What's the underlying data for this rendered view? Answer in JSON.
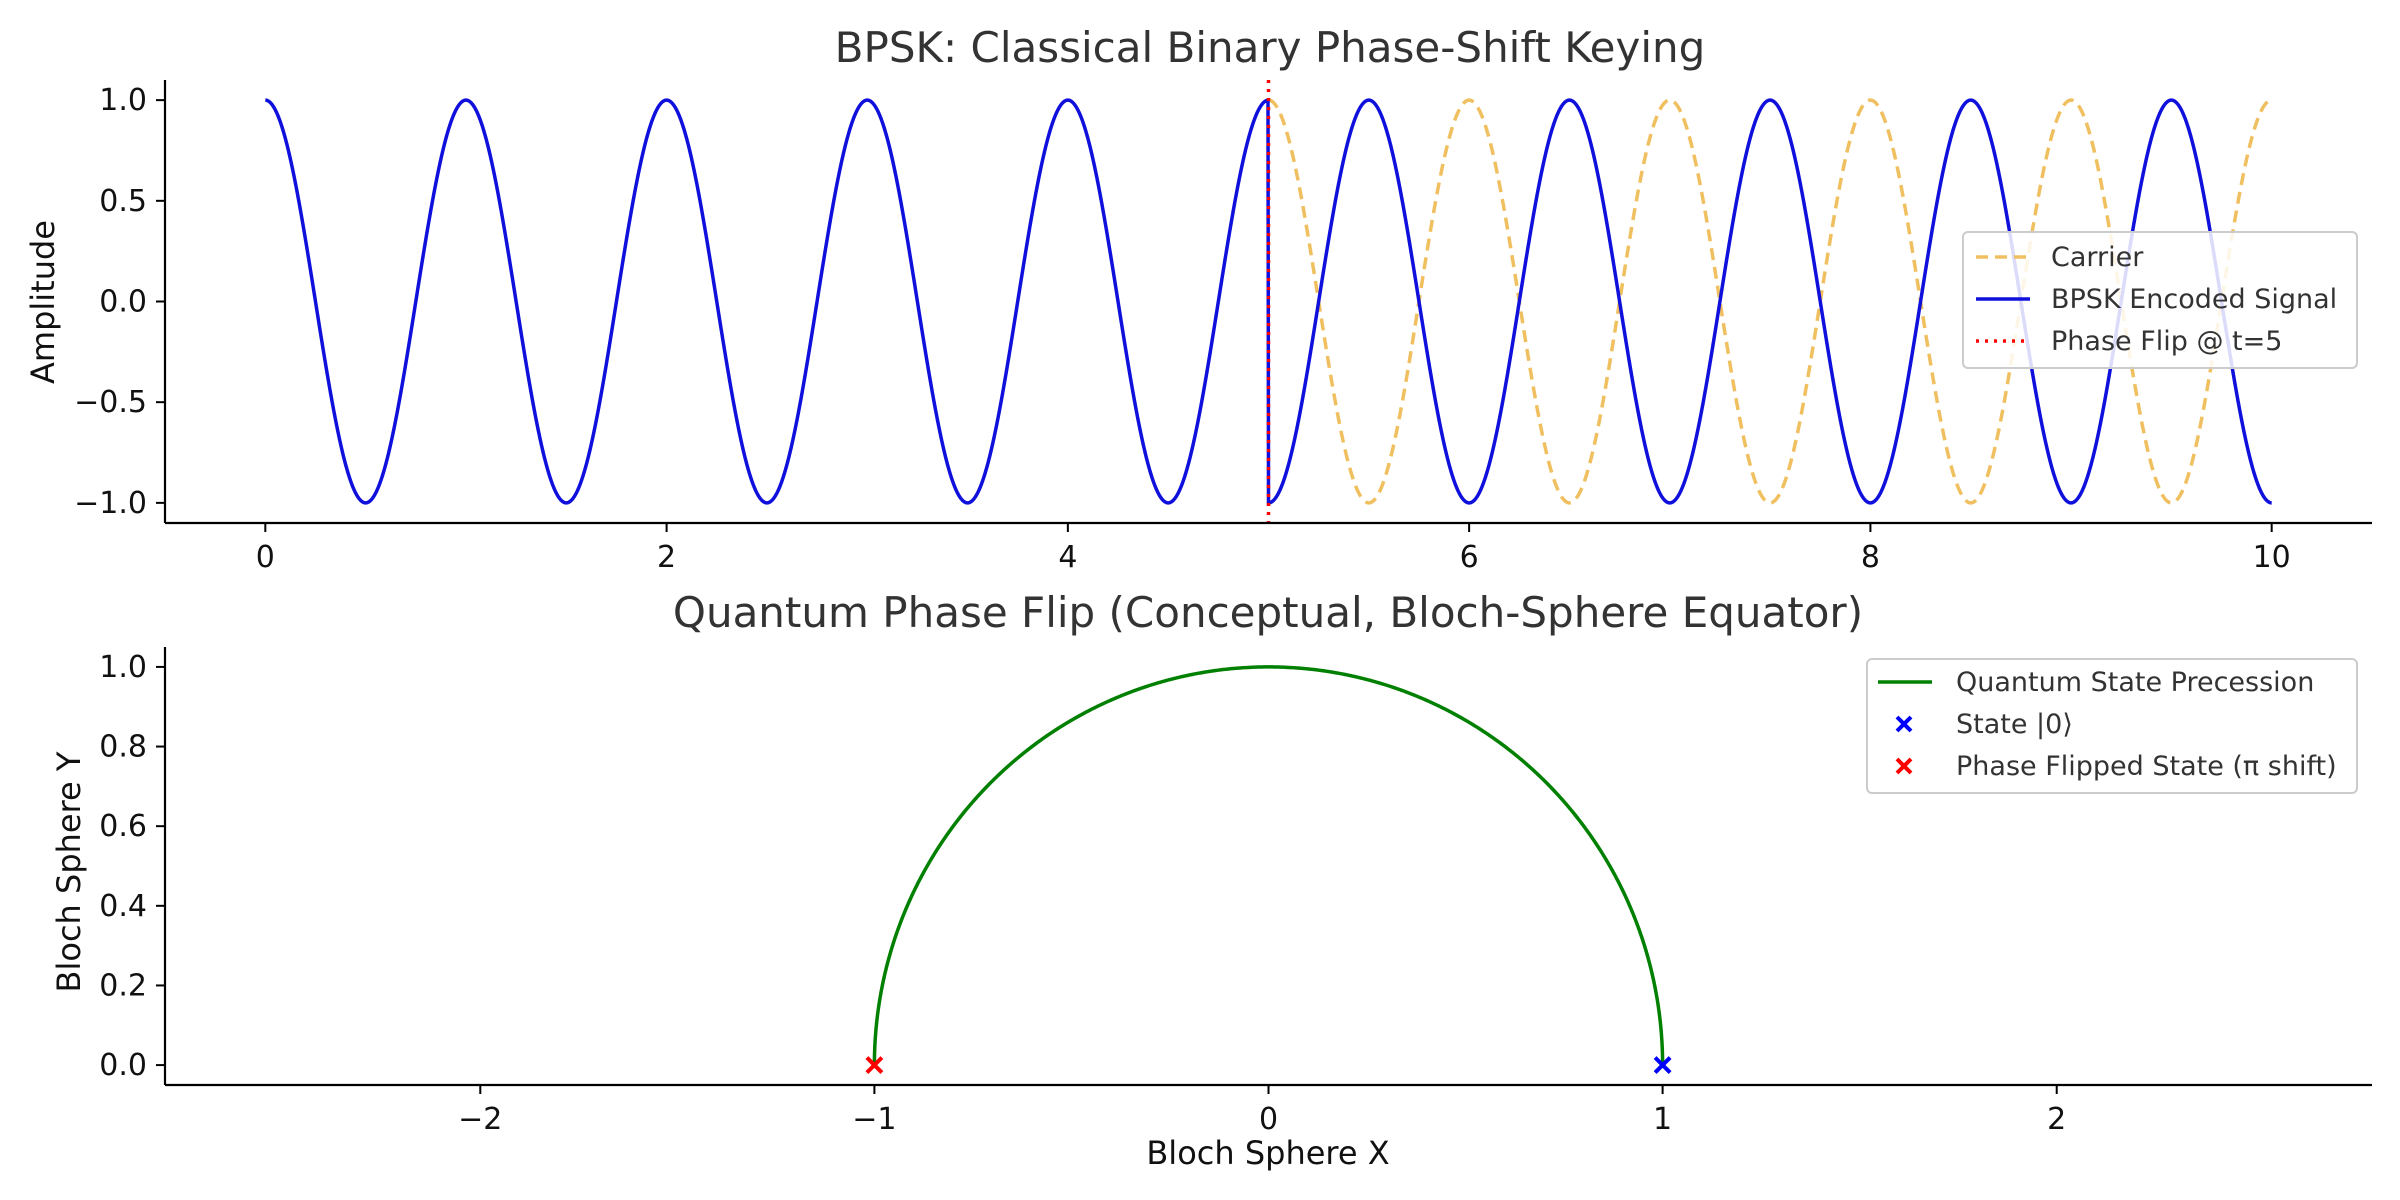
{
  "chart_data": [
    {
      "type": "line",
      "title": "BPSK: Classical Binary Phase-Shift Keying",
      "xlabel": "",
      "ylabel": "Amplitude",
      "xlim": [
        -0.5,
        10.5
      ],
      "ylim": [
        -1.1,
        1.1
      ],
      "xticks": [
        0,
        2,
        4,
        6,
        8,
        10
      ],
      "yticks": [
        1.0,
        0.5,
        0.0,
        -0.5,
        -1.0
      ],
      "xtick_labels": [
        "0",
        "2",
        "4",
        "6",
        "8",
        "10"
      ],
      "ytick_labels": [
        "1.0",
        "0.5",
        "0.0",
        "−0.5",
        "−1.0"
      ],
      "grid": false,
      "legend_position": "center-right",
      "series": [
        {
          "name": "Carrier",
          "style": "dashed",
          "color": "#f0c060",
          "function": "cos(2π·t)",
          "x_range": [
            0,
            10
          ],
          "drawn_from_x": 5
        },
        {
          "name": "BPSK Encoded Signal",
          "style": "solid",
          "color": "#1010dd",
          "function": "cos(2π·t) for t<5; −cos(2π·t) for t≥5",
          "x_range": [
            0,
            10
          ]
        },
        {
          "name": "Phase Flip @ t=5",
          "style": "dotted",
          "color": "#ff0000",
          "vertical_line_x": 5
        }
      ]
    },
    {
      "type": "scatter",
      "title": "Quantum Phase Flip (Conceptual, Bloch-Sphere Equator)",
      "xlabel": "Bloch Sphere X",
      "ylabel": "Bloch Sphere Y",
      "xlim": [
        -2.8,
        2.8
      ],
      "ylim": [
        -0.05,
        1.05
      ],
      "xticks": [
        -2,
        -1,
        0,
        1,
        2
      ],
      "yticks": [
        0.0,
        0.2,
        0.4,
        0.6,
        0.8,
        1.0
      ],
      "xtick_labels": [
        "−2",
        "−1",
        "0",
        "1",
        "2"
      ],
      "ytick_labels": [
        "0.0",
        "0.2",
        "0.4",
        "0.6",
        "0.8",
        "1.0"
      ],
      "grid": false,
      "legend_position": "top-right",
      "series": [
        {
          "name": "Quantum State Precession",
          "style": "solid",
          "color": "#008000",
          "function": "x=cos(θ), y=sin(θ)",
          "theta_range_deg": [
            0,
            180
          ]
        },
        {
          "name": "State |0⟩",
          "marker": "x",
          "color": "#0000ff",
          "points": [
            [
              1,
              0
            ]
          ]
        },
        {
          "name": "Phase Flipped State (π shift)",
          "marker": "x",
          "color": "#ff0000",
          "points": [
            [
              -1,
              0
            ]
          ]
        }
      ]
    }
  ]
}
